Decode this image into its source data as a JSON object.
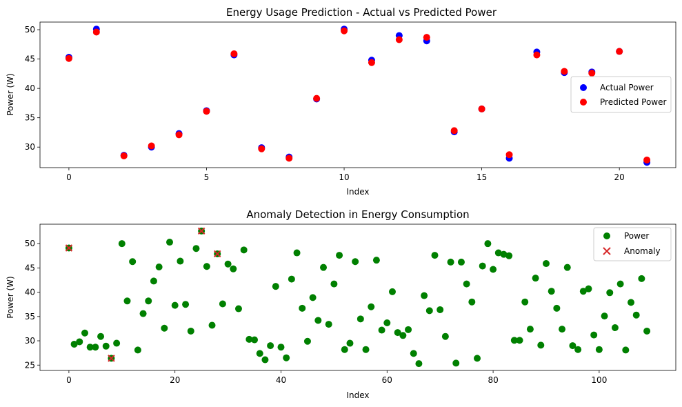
{
  "chart_data": [
    {
      "type": "scatter",
      "title": "Energy Usage Prediction - Actual vs Predicted Power",
      "xlabel": "Index",
      "ylabel": "Power (W)",
      "xlim": [
        -1.05,
        22.05
      ],
      "ylim": [
        26.5,
        51.3
      ],
      "xticks": [
        0,
        5,
        10,
        15,
        20
      ],
      "yticks": [
        30,
        35,
        40,
        45,
        50
      ],
      "legend_position": "center-right",
      "series": [
        {
          "name": "Actual Power",
          "color": "#0000ff",
          "x": [
            0,
            1,
            2,
            3,
            4,
            5,
            6,
            7,
            8,
            9,
            10,
            11,
            12,
            13,
            14,
            15,
            16,
            17,
            18,
            19,
            20,
            21
          ],
          "y": [
            45.3,
            50.1,
            28.6,
            30.0,
            32.3,
            36.2,
            45.7,
            29.9,
            28.3,
            38.2,
            50.1,
            44.8,
            49.0,
            48.1,
            32.6,
            36.5,
            28.1,
            46.2,
            42.7,
            42.8,
            46.3,
            27.4
          ]
        },
        {
          "name": "Predicted Power",
          "color": "#ff0000",
          "x": [
            0,
            1,
            2,
            3,
            4,
            5,
            6,
            7,
            8,
            9,
            10,
            11,
            12,
            13,
            14,
            15,
            16,
            17,
            18,
            19,
            20,
            21
          ],
          "y": [
            45.1,
            49.6,
            28.5,
            30.2,
            32.1,
            36.1,
            45.9,
            29.7,
            28.1,
            38.3,
            49.8,
            44.4,
            48.3,
            48.7,
            32.8,
            36.5,
            28.7,
            45.7,
            42.9,
            42.6,
            46.3,
            27.8
          ]
        }
      ]
    },
    {
      "type": "scatter",
      "title": "Anomaly Detection in Energy Consumption",
      "xlabel": "Index",
      "ylabel": "Power (W)",
      "xlim": [
        -5.45,
        114.45
      ],
      "ylim": [
        23.9,
        54.0
      ],
      "xticks": [
        0,
        20,
        40,
        60,
        80,
        100
      ],
      "yticks": [
        25,
        30,
        35,
        40,
        45,
        50
      ],
      "legend_position": "top-right",
      "series": [
        {
          "name": "Power",
          "color": "#008000",
          "marker": "circle",
          "x": [
            0,
            1,
            2,
            3,
            4,
            5,
            6,
            7,
            8,
            9,
            10,
            11,
            12,
            13,
            14,
            15,
            16,
            17,
            18,
            19,
            20,
            21,
            22,
            23,
            24,
            25,
            26,
            27,
            28,
            29,
            30,
            31,
            32,
            33,
            34,
            35,
            36,
            37,
            38,
            39,
            40,
            41,
            42,
            43,
            44,
            45,
            46,
            47,
            48,
            49,
            50,
            51,
            52,
            53,
            54,
            55,
            56,
            57,
            58,
            59,
            60,
            61,
            62,
            63,
            64,
            65,
            66,
            67,
            68,
            69,
            70,
            71,
            72,
            73,
            74,
            75,
            76,
            77,
            78,
            79,
            80,
            81,
            82,
            83,
            84,
            85,
            86,
            87,
            88,
            89,
            90,
            91,
            92,
            93,
            94,
            95,
            96,
            97,
            98,
            99,
            100,
            101,
            102,
            103,
            104,
            105,
            106,
            107,
            108,
            109
          ],
          "y": [
            49.1,
            29.3,
            29.8,
            31.6,
            28.7,
            28.7,
            30.9,
            28.9,
            26.4,
            29.5,
            50.0,
            38.2,
            46.3,
            28.1,
            35.6,
            38.2,
            42.3,
            45.2,
            32.6,
            50.3,
            37.3,
            46.4,
            37.5,
            32.0,
            49.0,
            52.6,
            45.3,
            33.2,
            47.9,
            37.6,
            45.8,
            44.8,
            36.6,
            48.7,
            30.3,
            30.2,
            27.4,
            26.1,
            29.0,
            41.2,
            28.7,
            26.5,
            42.7,
            48.1,
            36.7,
            29.9,
            38.9,
            34.2,
            45.1,
            33.4,
            41.7,
            47.6,
            28.2,
            29.5,
            46.3,
            34.5,
            28.2,
            37.0,
            46.6,
            32.2,
            33.7,
            40.1,
            31.7,
            31.1,
            32.3,
            27.4,
            25.3,
            39.3,
            36.2,
            47.6,
            36.4,
            30.9,
            46.2,
            25.4,
            46.2,
            41.7,
            38.0,
            26.4,
            45.4,
            50.0,
            44.7,
            48.1,
            47.8,
            47.5,
            30.1,
            30.1,
            38.0,
            32.4,
            42.9,
            29.1,
            45.9,
            40.2,
            36.7,
            32.4,
            45.1,
            29.0,
            28.2,
            40.2,
            40.7,
            31.2,
            28.2,
            35.1,
            39.9,
            32.7,
            41.7,
            28.1,
            37.9,
            35.3,
            42.8,
            32.0
          ]
        },
        {
          "name": "Anomaly",
          "color": "#d62728",
          "marker": "x",
          "x": [
            0,
            8,
            25,
            28
          ],
          "y": [
            49.1,
            26.4,
            52.6,
            47.9
          ]
        }
      ]
    }
  ]
}
